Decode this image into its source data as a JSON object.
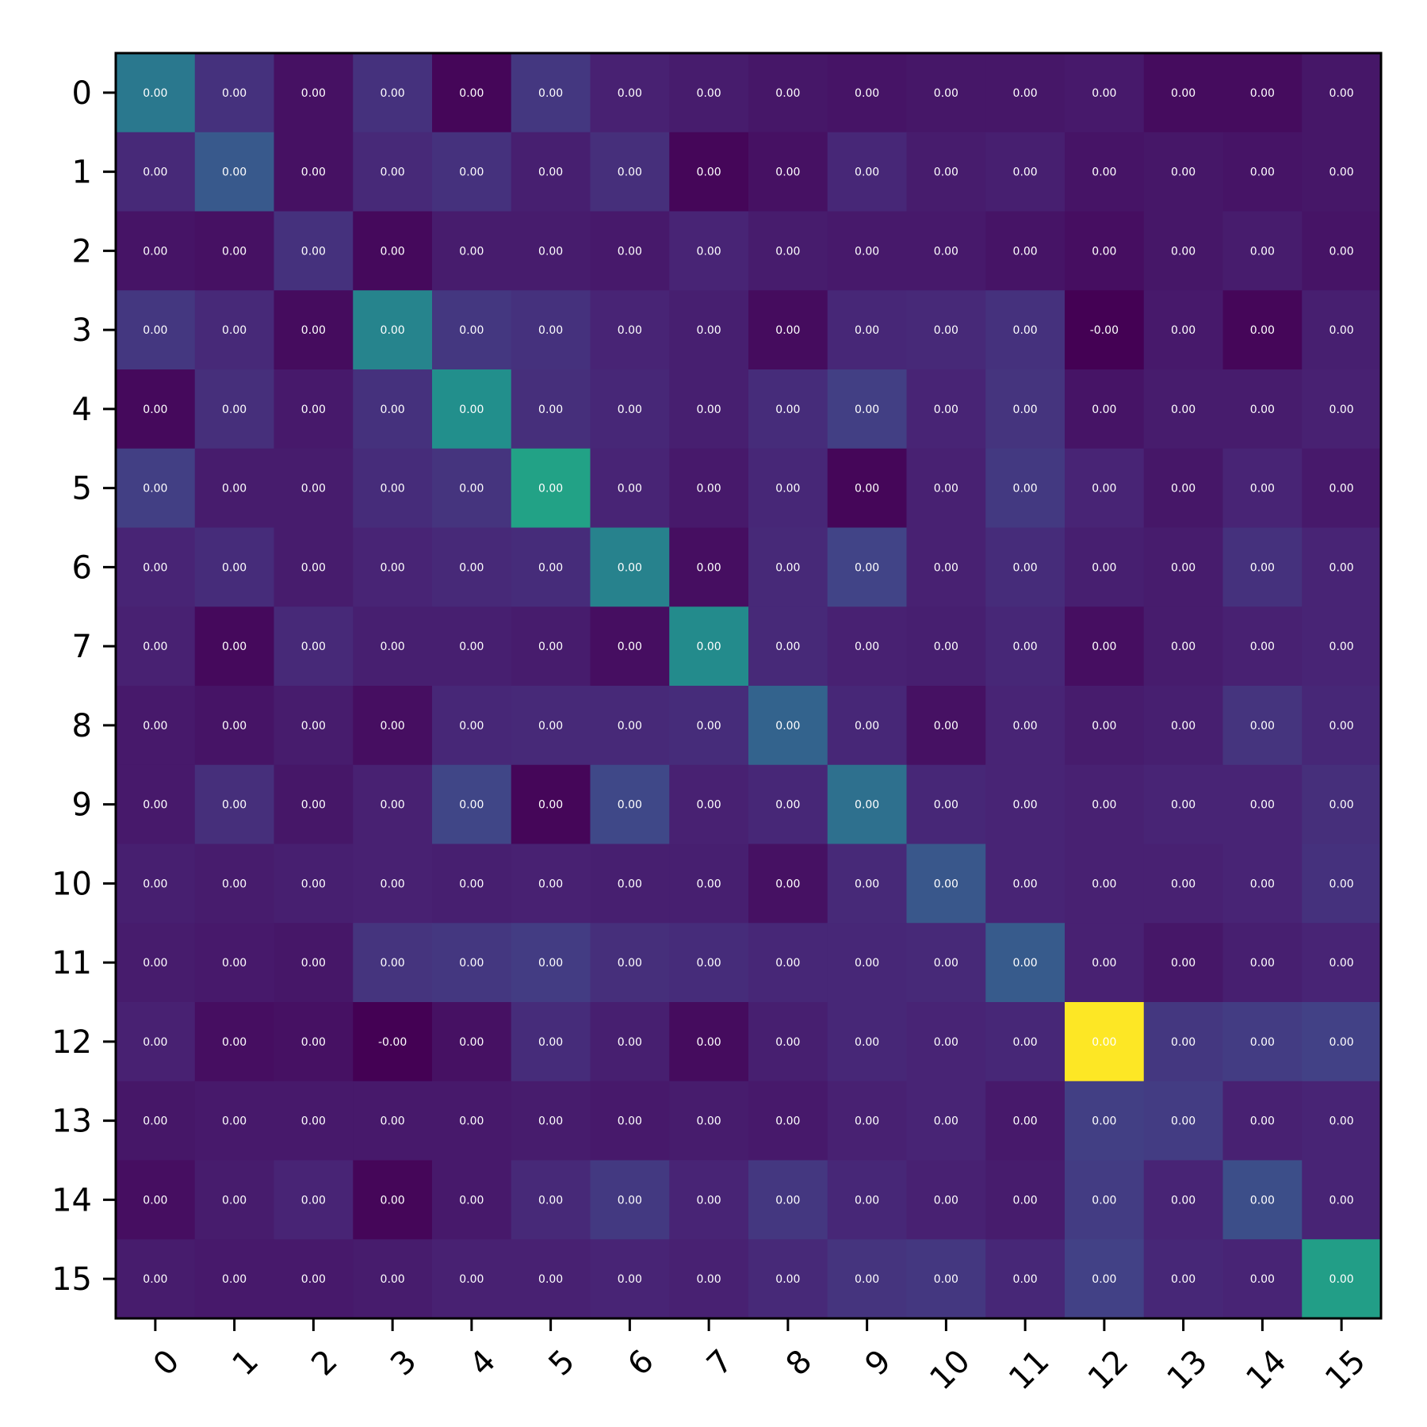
{
  "chart_data": {
    "type": "heatmap",
    "title": "",
    "xlabel": "",
    "ylabel": "",
    "x_categories": [
      "0",
      "1",
      "2",
      "3",
      "4",
      "5",
      "6",
      "7",
      "8",
      "9",
      "10",
      "11",
      "12",
      "13",
      "14",
      "15"
    ],
    "y_categories": [
      "0",
      "1",
      "2",
      "3",
      "4",
      "5",
      "6",
      "7",
      "8",
      "9",
      "10",
      "11",
      "12",
      "13",
      "14",
      "15"
    ],
    "colormap": "viridis",
    "colorbar": false,
    "grid": false,
    "value_format": "0.00",
    "color_intensity": [
      [
        0.5,
        0.18,
        0.06,
        0.18,
        0.02,
        0.2,
        0.12,
        0.1,
        0.08,
        0.07,
        0.08,
        0.08,
        0.09,
        0.04,
        0.04,
        0.08
      ],
      [
        0.15,
        0.35,
        0.06,
        0.15,
        0.18,
        0.11,
        0.17,
        0.02,
        0.06,
        0.14,
        0.1,
        0.11,
        0.07,
        0.08,
        0.07,
        0.08
      ],
      [
        0.07,
        0.06,
        0.18,
        0.03,
        0.1,
        0.1,
        0.09,
        0.13,
        0.1,
        0.09,
        0.09,
        0.07,
        0.05,
        0.08,
        0.1,
        0.07
      ],
      [
        0.2,
        0.15,
        0.04,
        0.56,
        0.2,
        0.18,
        0.13,
        0.11,
        0.04,
        0.14,
        0.15,
        0.18,
        0.0,
        0.09,
        0.02,
        0.11
      ],
      [
        0.03,
        0.17,
        0.09,
        0.18,
        0.62,
        0.17,
        0.14,
        0.11,
        0.16,
        0.23,
        0.13,
        0.19,
        0.07,
        0.1,
        0.1,
        0.12
      ],
      [
        0.23,
        0.1,
        0.1,
        0.16,
        0.19,
        0.72,
        0.13,
        0.09,
        0.14,
        0.02,
        0.12,
        0.21,
        0.13,
        0.08,
        0.13,
        0.09
      ],
      [
        0.13,
        0.16,
        0.1,
        0.13,
        0.15,
        0.16,
        0.55,
        0.05,
        0.15,
        0.25,
        0.12,
        0.16,
        0.11,
        0.1,
        0.18,
        0.13
      ],
      [
        0.12,
        0.03,
        0.15,
        0.11,
        0.11,
        0.1,
        0.05,
        0.6,
        0.15,
        0.12,
        0.11,
        0.14,
        0.05,
        0.1,
        0.12,
        0.13
      ],
      [
        0.09,
        0.07,
        0.1,
        0.05,
        0.14,
        0.15,
        0.15,
        0.16,
        0.4,
        0.14,
        0.06,
        0.13,
        0.1,
        0.11,
        0.19,
        0.14
      ],
      [
        0.09,
        0.17,
        0.08,
        0.12,
        0.26,
        0.02,
        0.27,
        0.12,
        0.14,
        0.46,
        0.14,
        0.13,
        0.12,
        0.13,
        0.13,
        0.17
      ],
      [
        0.11,
        0.1,
        0.11,
        0.12,
        0.11,
        0.12,
        0.11,
        0.11,
        0.06,
        0.15,
        0.34,
        0.13,
        0.12,
        0.12,
        0.13,
        0.18
      ],
      [
        0.1,
        0.09,
        0.08,
        0.19,
        0.2,
        0.22,
        0.17,
        0.16,
        0.14,
        0.14,
        0.15,
        0.36,
        0.12,
        0.08,
        0.11,
        0.13
      ],
      [
        0.12,
        0.05,
        0.06,
        0.0,
        0.06,
        0.16,
        0.11,
        0.04,
        0.11,
        0.14,
        0.13,
        0.14,
        1.0,
        0.2,
        0.22,
        0.24
      ],
      [
        0.08,
        0.09,
        0.09,
        0.09,
        0.09,
        0.1,
        0.09,
        0.1,
        0.09,
        0.12,
        0.13,
        0.09,
        0.23,
        0.22,
        0.12,
        0.13
      ],
      [
        0.05,
        0.1,
        0.13,
        0.02,
        0.09,
        0.15,
        0.21,
        0.13,
        0.2,
        0.14,
        0.12,
        0.1,
        0.22,
        0.13,
        0.3,
        0.13
      ],
      [
        0.1,
        0.09,
        0.09,
        0.1,
        0.12,
        0.12,
        0.13,
        0.12,
        0.15,
        0.19,
        0.2,
        0.14,
        0.24,
        0.14,
        0.13,
        0.7
      ]
    ],
    "cell_labels": [
      [
        "0.00",
        "0.00",
        "0.00",
        "0.00",
        "0.00",
        "0.00",
        "0.00",
        "0.00",
        "0.00",
        "0.00",
        "0.00",
        "0.00",
        "0.00",
        "0.00",
        "0.00",
        "0.00"
      ],
      [
        "0.00",
        "0.00",
        "0.00",
        "0.00",
        "0.00",
        "0.00",
        "0.00",
        "0.00",
        "0.00",
        "0.00",
        "0.00",
        "0.00",
        "0.00",
        "0.00",
        "0.00",
        "0.00"
      ],
      [
        "0.00",
        "0.00",
        "0.00",
        "0.00",
        "0.00",
        "0.00",
        "0.00",
        "0.00",
        "0.00",
        "0.00",
        "0.00",
        "0.00",
        "0.00",
        "0.00",
        "0.00",
        "0.00"
      ],
      [
        "0.00",
        "0.00",
        "0.00",
        "0.00",
        "0.00",
        "0.00",
        "0.00",
        "0.00",
        "0.00",
        "0.00",
        "0.00",
        "0.00",
        "-0.00",
        "0.00",
        "0.00",
        "0.00"
      ],
      [
        "0.00",
        "0.00",
        "0.00",
        "0.00",
        "0.00",
        "0.00",
        "0.00",
        "0.00",
        "0.00",
        "0.00",
        "0.00",
        "0.00",
        "0.00",
        "0.00",
        "0.00",
        "0.00"
      ],
      [
        "0.00",
        "0.00",
        "0.00",
        "0.00",
        "0.00",
        "0.00",
        "0.00",
        "0.00",
        "0.00",
        "0.00",
        "0.00",
        "0.00",
        "0.00",
        "0.00",
        "0.00",
        "0.00"
      ],
      [
        "0.00",
        "0.00",
        "0.00",
        "0.00",
        "0.00",
        "0.00",
        "0.00",
        "0.00",
        "0.00",
        "0.00",
        "0.00",
        "0.00",
        "0.00",
        "0.00",
        "0.00",
        "0.00"
      ],
      [
        "0.00",
        "0.00",
        "0.00",
        "0.00",
        "0.00",
        "0.00",
        "0.00",
        "0.00",
        "0.00",
        "0.00",
        "0.00",
        "0.00",
        "0.00",
        "0.00",
        "0.00",
        "0.00"
      ],
      [
        "0.00",
        "0.00",
        "0.00",
        "0.00",
        "0.00",
        "0.00",
        "0.00",
        "0.00",
        "0.00",
        "0.00",
        "0.00",
        "0.00",
        "0.00",
        "0.00",
        "0.00",
        "0.00"
      ],
      [
        "0.00",
        "0.00",
        "0.00",
        "0.00",
        "0.00",
        "0.00",
        "0.00",
        "0.00",
        "0.00",
        "0.00",
        "0.00",
        "0.00",
        "0.00",
        "0.00",
        "0.00",
        "0.00"
      ],
      [
        "0.00",
        "0.00",
        "0.00",
        "0.00",
        "0.00",
        "0.00",
        "0.00",
        "0.00",
        "0.00",
        "0.00",
        "0.00",
        "0.00",
        "0.00",
        "0.00",
        "0.00",
        "0.00"
      ],
      [
        "0.00",
        "0.00",
        "0.00",
        "0.00",
        "0.00",
        "0.00",
        "0.00",
        "0.00",
        "0.00",
        "0.00",
        "0.00",
        "0.00",
        "0.00",
        "0.00",
        "0.00",
        "0.00"
      ],
      [
        "0.00",
        "0.00",
        "0.00",
        "-0.00",
        "0.00",
        "0.00",
        "0.00",
        "0.00",
        "0.00",
        "0.00",
        "0.00",
        "0.00",
        "0.00",
        "0.00",
        "0.00",
        "0.00"
      ],
      [
        "0.00",
        "0.00",
        "0.00",
        "0.00",
        "0.00",
        "0.00",
        "0.00",
        "0.00",
        "0.00",
        "0.00",
        "0.00",
        "0.00",
        "0.00",
        "0.00",
        "0.00",
        "0.00"
      ],
      [
        "0.00",
        "0.00",
        "0.00",
        "0.00",
        "0.00",
        "0.00",
        "0.00",
        "0.00",
        "0.00",
        "0.00",
        "0.00",
        "0.00",
        "0.00",
        "0.00",
        "0.00",
        "0.00"
      ],
      [
        "0.00",
        "0.00",
        "0.00",
        "0.00",
        "0.00",
        "0.00",
        "0.00",
        "0.00",
        "0.00",
        "0.00",
        "0.00",
        "0.00",
        "0.00",
        "0.00",
        "0.00",
        "0.00"
      ]
    ]
  }
}
